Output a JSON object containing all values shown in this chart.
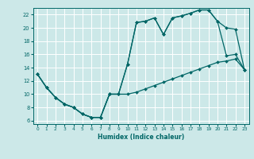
{
  "xlabel": "Humidex (Indice chaleur)",
  "xlim": [
    -0.5,
    23.5
  ],
  "ylim": [
    5.5,
    23.0
  ],
  "xticks": [
    0,
    1,
    2,
    3,
    4,
    5,
    6,
    7,
    8,
    9,
    10,
    11,
    12,
    13,
    14,
    15,
    16,
    17,
    18,
    19,
    20,
    21,
    22,
    23
  ],
  "yticks": [
    6,
    8,
    10,
    12,
    14,
    16,
    18,
    20,
    22
  ],
  "bg_color": "#cce8e8",
  "grid_color": "#ffffff",
  "line_color": "#006666",
  "curve1_x": [
    0,
    1,
    2,
    3,
    4,
    5,
    6,
    7,
    8,
    9,
    10,
    11,
    12,
    13,
    14,
    15,
    16,
    17,
    18,
    19,
    20,
    21,
    22,
    23
  ],
  "curve1_y": [
    13,
    11,
    9.5,
    8.5,
    8.0,
    7.0,
    6.5,
    6.5,
    10.0,
    10.0,
    14.5,
    20.8,
    21.0,
    21.5,
    19.0,
    21.5,
    21.8,
    22.2,
    22.7,
    22.7,
    21.0,
    20.0,
    19.8,
    13.7
  ],
  "curve2_x": [
    0,
    1,
    2,
    3,
    4,
    5,
    6,
    7,
    8,
    9,
    10,
    11,
    12,
    13,
    14,
    15,
    16,
    17,
    18,
    19,
    20,
    21,
    22,
    23
  ],
  "curve2_y": [
    13,
    11,
    9.5,
    8.5,
    8.0,
    7.0,
    6.5,
    6.5,
    10.0,
    10.0,
    10.0,
    10.3,
    10.8,
    11.3,
    11.8,
    12.3,
    12.8,
    13.3,
    13.8,
    14.3,
    14.8,
    15.0,
    15.3,
    13.7
  ],
  "curve3_x": [
    0,
    1,
    2,
    3,
    4,
    5,
    6,
    7,
    8,
    9,
    10,
    11,
    12,
    13,
    14,
    15,
    16,
    17,
    18,
    19,
    20,
    21,
    22,
    23
  ],
  "curve3_y": [
    13,
    11,
    9.5,
    8.5,
    8.0,
    7.0,
    6.5,
    6.5,
    10.0,
    10.0,
    14.5,
    20.8,
    21.0,
    21.5,
    19.0,
    21.5,
    21.8,
    22.2,
    22.7,
    22.7,
    21.0,
    15.8,
    16.0,
    13.7
  ]
}
